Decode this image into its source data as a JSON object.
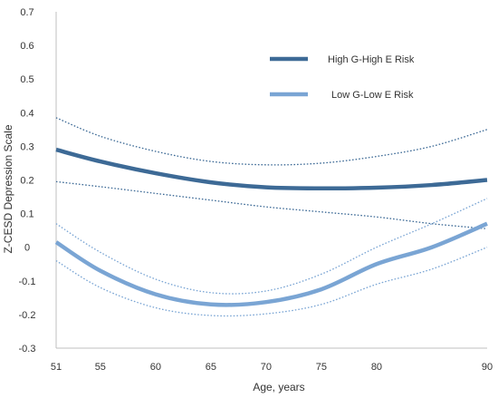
{
  "chart_data": {
    "type": "line",
    "xlabel": "Age, years",
    "ylabel": "Z-CESD Depression Scale",
    "xlim": [
      51,
      90
    ],
    "ylim": [
      -0.3,
      0.7
    ],
    "x_ticks": [
      51,
      55,
      60,
      65,
      70,
      75,
      80,
      90
    ],
    "y_ticks": [
      -0.3,
      -0.2,
      -0.1,
      0,
      0.1,
      0.2,
      0.3,
      0.4,
      0.5,
      0.6,
      0.7
    ],
    "y_tick_labels": [
      "-0.3",
      "-0.2",
      "-0.1",
      "0",
      "0.1",
      "0.2",
      "0.3",
      "0.4",
      "0.5",
      "0.6",
      "0.7"
    ],
    "legend_position": "top-right",
    "grid": false,
    "series": [
      {
        "name": "High G-High E Risk",
        "color": "#3d6a96",
        "x": [
          51,
          55,
          60,
          65,
          70,
          75,
          80,
          85,
          90
        ],
        "y": [
          0.29,
          0.255,
          0.22,
          0.193,
          0.178,
          0.175,
          0.177,
          0.185,
          0.2
        ],
        "ci_upper": [
          0.385,
          0.33,
          0.285,
          0.255,
          0.245,
          0.25,
          0.27,
          0.3,
          0.35
        ],
        "ci_lower": [
          0.195,
          0.18,
          0.16,
          0.14,
          0.12,
          0.105,
          0.09,
          0.07,
          0.055
        ]
      },
      {
        "name": "Low G-Low E Risk",
        "color": "#7aa5d4",
        "x": [
          51,
          55,
          60,
          65,
          70,
          75,
          80,
          85,
          90
        ],
        "y": [
          0.015,
          -0.07,
          -0.14,
          -0.17,
          -0.163,
          -0.125,
          -0.05,
          0.0,
          0.07
        ],
        "ci_upper": [
          0.07,
          -0.015,
          -0.095,
          -0.135,
          -0.13,
          -0.08,
          0.0,
          0.07,
          0.145
        ],
        "ci_lower": [
          -0.04,
          -0.12,
          -0.18,
          -0.203,
          -0.198,
          -0.17,
          -0.11,
          -0.065,
          0.0
        ]
      }
    ]
  }
}
